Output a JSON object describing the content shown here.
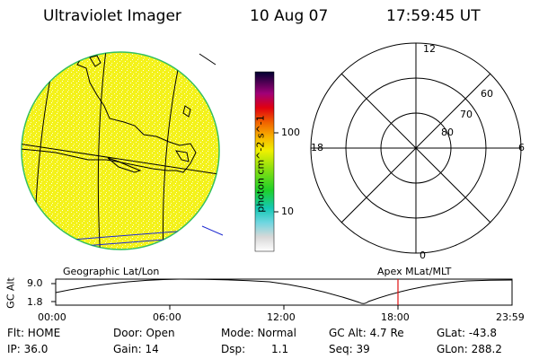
{
  "header": {
    "title": "Ultraviolet Imager",
    "date": "10 Aug 07",
    "time": "17:59:45 UT"
  },
  "colorbar": {
    "label": "photon cm^-2 s^-1",
    "ticks": [
      "100",
      "10"
    ]
  },
  "polar": {
    "mlt_labels": {
      "top": "12",
      "right": "6",
      "bottom": "0",
      "left": "18"
    },
    "lat_labels": [
      "60",
      "70",
      "80"
    ]
  },
  "map_labels": {
    "left": "Geographic Lat/Lon",
    "right": "Apex MLat/MLT"
  },
  "altitude_plot": {
    "ylabel": "GC Alt",
    "yticks": [
      "9.0",
      "1.8"
    ],
    "xticks": [
      "00:00",
      "06:00",
      "12:00",
      "18:00",
      "23:59"
    ],
    "current_time_marker": "17:59:45"
  },
  "status": {
    "flt": "Flt: HOME",
    "ip": "IP: 36.0",
    "door": "Door: Open",
    "gain": "Gain: 14",
    "mode": "Mode: Normal",
    "dsp_label": "Dsp:",
    "dsp_value": "1.1",
    "gc_alt": "GC Alt: 4.7 Re",
    "seq": "Seq: 39",
    "glat": "GLat: -43.8",
    "glon": "GLon: 288.2"
  },
  "colors": {
    "earth_fill": "#f4f21a",
    "limb": "#34c060",
    "marker": "#e01010"
  }
}
